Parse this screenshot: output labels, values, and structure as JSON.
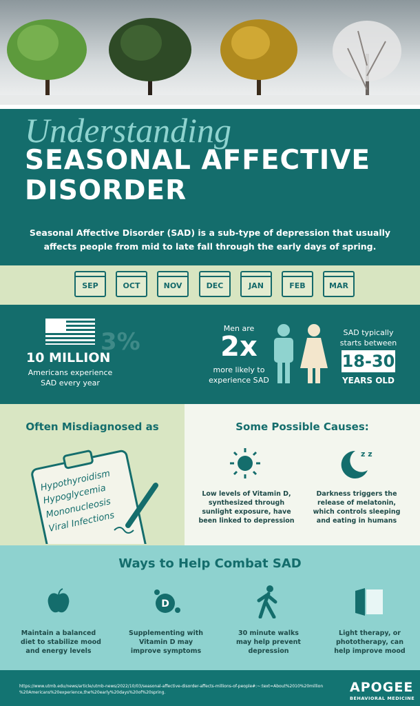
{
  "header": {
    "script_title": "Understanding",
    "title_lines": [
      "SEASONAL AFFECTIVE",
      "DISORDER"
    ]
  },
  "intro": [
    "Seasonal Affective Disorder (SAD) is a sub-type of depression that usually",
    "affects people from mid to late fall through the early days of spring."
  ],
  "months": [
    "SEP",
    "OCT",
    "NOV",
    "DEC",
    "JAN",
    "FEB",
    "MAR"
  ],
  "stats": {
    "us": {
      "number": "10 MILLION",
      "overlay": "3%",
      "caption": [
        "Americans experience",
        "SAD every year"
      ]
    },
    "men": {
      "label": "Men are",
      "number": "2x",
      "caption": [
        "more likely to",
        "experience SAD"
      ]
    },
    "age": {
      "label": [
        "SAD typically",
        "starts between"
      ],
      "range": "18-30",
      "unit": "YEARS OLD"
    }
  },
  "misdiagnosed": {
    "title": "Often Misdiagnosed as",
    "items": [
      "Hypothyroidism",
      "Hypoglycemia",
      "Mononucleosis",
      "Viral Infections"
    ]
  },
  "causes": {
    "title": "Some Possible Causes:",
    "items": [
      [
        "Low levels of Vitamin D,",
        "synthesized through",
        "sunlight exposure, have",
        "been linked to depression"
      ],
      [
        "Darkness triggers the",
        "release of melatonin,",
        "which controls sleeping",
        "and eating in humans"
      ]
    ]
  },
  "ways": {
    "title": "Ways to Help Combat SAD",
    "items": [
      [
        "Maintain a balanced",
        "diet to stabilize mood",
        "and energy levels"
      ],
      [
        "Supplementing with",
        "Vitamin D may",
        "improve symptoms"
      ],
      [
        "30 minute walks",
        "may help prevent",
        "depression"
      ],
      [
        "Light therapy, or",
        "phototherapy, can",
        "help improve mood"
      ]
    ]
  },
  "footer": {
    "source": [
      "https://www.utmb.edu/news/article/utmb-news/2022/10/03/seasonal-affective-disorder-affects-millions-of-people#:~:text=About%2010%20million",
      "%20Americans%20experience,the%20early%20days%20of%20spring."
    ],
    "logo": "APOGEE",
    "logo_sub": "BEHAVIORAL MEDICINE"
  }
}
